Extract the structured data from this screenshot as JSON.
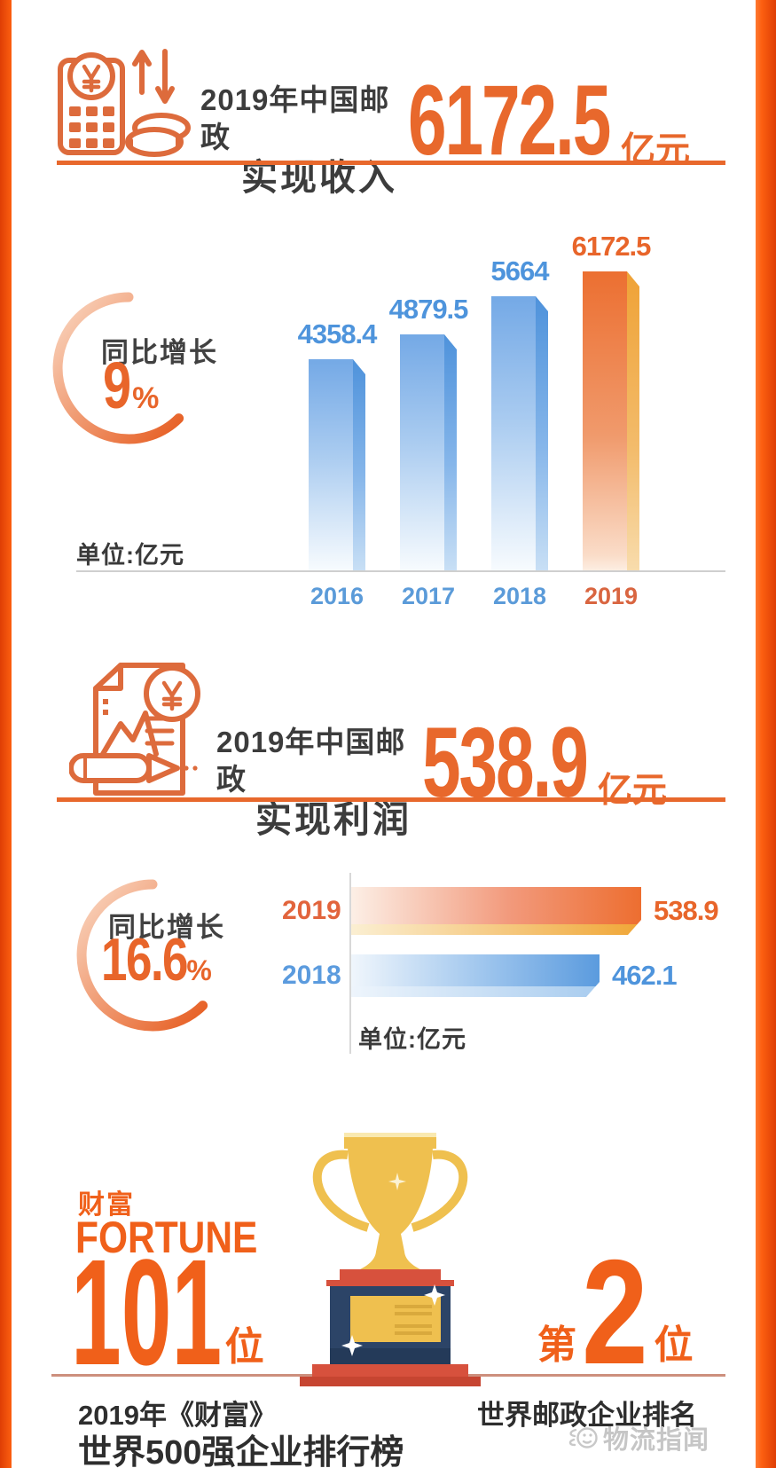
{
  "page": {
    "background": "#FFFFFF",
    "border_color": "#FA560B",
    "accent_orange": "#E8682C",
    "bar_blue": "#5B9BDE",
    "bar_highlight": "#ED6E30"
  },
  "revenue_header": {
    "icon": "calculator-yuan-icon",
    "title_line1": "2019年中国邮政",
    "title_line2": "实现收入",
    "value": "6172.5",
    "unit": "亿元"
  },
  "profit_header": {
    "icon": "document-pencil-yuan-icon",
    "title_line1": "2019年中国邮政",
    "title_line2": "实现利润",
    "value": "538.9",
    "unit": "亿元"
  },
  "chart_data": [
    {
      "type": "bar",
      "orientation": "vertical",
      "title": "2019年中国邮政实现收入 6172.5亿元",
      "unit": "亿元",
      "unit_label": "单位:亿元",
      "growth_label": "同比增长",
      "growth_value": "9",
      "percent_sign": "%",
      "categories": [
        "2016",
        "2017",
        "2018",
        "2019"
      ],
      "values": [
        4358.4,
        4879.5,
        5664,
        6172.5
      ],
      "highlight_category": "2019",
      "bar_color": "#5B9BDE",
      "highlight_color": "#ED6E30",
      "ylim": [
        0,
        6172.5
      ],
      "gridlines": false,
      "legend": "none"
    },
    {
      "type": "bar",
      "orientation": "horizontal",
      "title": "2019年中国邮政实现利润 538.9亿元",
      "unit": "亿元",
      "unit_label": "单位:亿元",
      "growth_label": "同比增长",
      "growth_value": "16.6",
      "percent_sign": "%",
      "categories": [
        "2019",
        "2018"
      ],
      "values": [
        538.9,
        462.1
      ],
      "highlight_category": "2019",
      "bar_color": "#5B9BDE",
      "highlight_color": "#ED6E30",
      "xlim": [
        0,
        538.9
      ],
      "gridlines": false,
      "legend": "none"
    }
  ],
  "ranking": {
    "fortune_cn": "财富",
    "fortune_en": "FORTUNE",
    "world_rank": "101",
    "world_rank_suffix": "位",
    "postal_rank_prefix": "第",
    "postal_rank": "2",
    "postal_rank_suffix": "位",
    "caption_left_line1": "2019年《财富》",
    "caption_left_line2": "世界500强企业排行榜",
    "caption_right": "世界邮政企业排名",
    "trophy": "gold-trophy-illustration"
  },
  "watermark": {
    "logo": "logistics-mascot-icon",
    "text": "物流指闻"
  }
}
